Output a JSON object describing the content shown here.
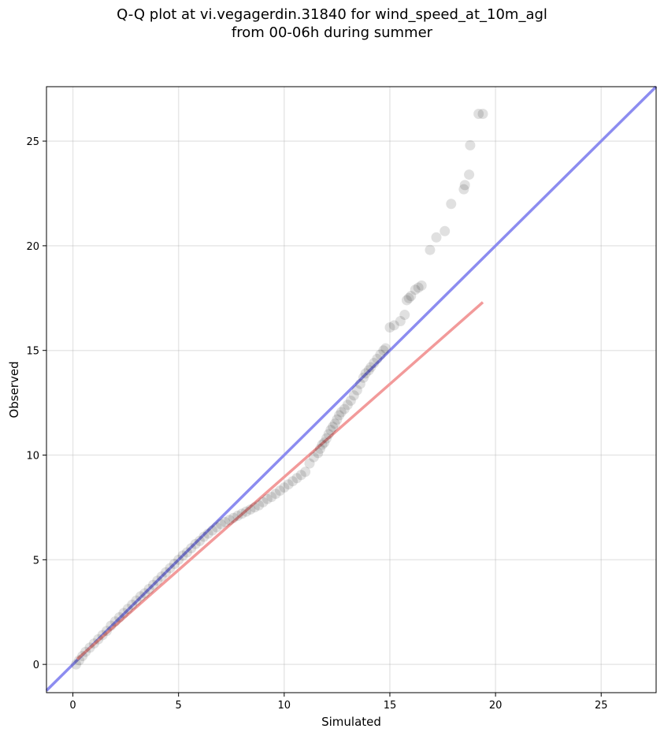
{
  "title_line1": "Q-Q plot at vi.vegagerdin.31840 for wind_speed_at_10m_agl",
  "title_line2": "from 00-06h during summer",
  "chart_data": {
    "type": "scatter",
    "xlabel": "Simulated",
    "ylabel": "Observed",
    "xlim": [
      -1.25,
      27.6
    ],
    "ylim": [
      -1.35,
      27.6
    ],
    "xticks": [
      0,
      5,
      10,
      15,
      20,
      25
    ],
    "yticks": [
      0,
      5,
      10,
      15,
      20,
      25
    ],
    "grid": true,
    "identity_line": {
      "color": "#8c8cf0",
      "from": [
        -1.25,
        -1.25
      ],
      "to": [
        27.6,
        27.6
      ]
    },
    "fit_line": {
      "color": "#f29a9a",
      "from": [
        0.2,
        0.25
      ],
      "to": [
        19.4,
        17.3
      ]
    },
    "points": {
      "color": "#000000",
      "x": [
        0.15,
        0.3,
        0.45,
        0.6,
        0.8,
        1.0,
        1.2,
        1.4,
        1.6,
        1.8,
        2.0,
        2.2,
        2.4,
        2.6,
        2.8,
        3.0,
        3.2,
        3.4,
        3.6,
        3.8,
        4.0,
        4.2,
        4.4,
        4.6,
        4.8,
        5.0,
        5.2,
        5.4,
        5.6,
        5.8,
        6.0,
        6.2,
        6.4,
        6.6,
        6.8,
        7.0,
        7.2,
        7.4,
        7.6,
        7.8,
        8.0,
        8.2,
        8.4,
        8.6,
        8.8,
        9.0,
        9.2,
        9.4,
        9.6,
        9.8,
        10.0,
        10.2,
        10.4,
        10.6,
        10.8,
        11.0,
        11.2,
        11.4,
        11.6,
        11.7,
        11.8,
        11.9,
        12.0,
        12.1,
        12.2,
        12.3,
        12.4,
        12.5,
        12.6,
        12.7,
        12.85,
        13.0,
        13.15,
        13.3,
        13.45,
        13.6,
        13.75,
        13.85,
        14.0,
        14.1,
        14.25,
        14.4,
        14.55,
        14.7,
        14.8,
        15.0,
        15.2,
        15.5,
        15.7,
        15.8,
        15.9,
        16.0,
        16.2,
        16.35,
        16.5,
        16.9,
        17.2,
        17.6,
        17.9,
        18.5,
        18.55,
        18.75,
        18.8,
        19.2,
        19.4
      ],
      "y": [
        0.0,
        0.2,
        0.4,
        0.6,
        0.8,
        1.0,
        1.2,
        1.4,
        1.6,
        1.85,
        2.05,
        2.25,
        2.45,
        2.65,
        2.85,
        3.05,
        3.25,
        3.4,
        3.6,
        3.8,
        4.0,
        4.2,
        4.4,
        4.6,
        4.8,
        5.0,
        5.2,
        5.35,
        5.55,
        5.75,
        5.9,
        6.1,
        6.25,
        6.4,
        6.55,
        6.7,
        6.8,
        6.9,
        7.0,
        7.1,
        7.2,
        7.3,
        7.4,
        7.5,
        7.6,
        7.75,
        7.9,
        8.0,
        8.15,
        8.3,
        8.45,
        8.6,
        8.75,
        8.9,
        9.05,
        9.2,
        9.6,
        9.9,
        10.1,
        10.3,
        10.5,
        10.6,
        10.8,
        11.0,
        11.2,
        11.35,
        11.5,
        11.7,
        11.9,
        12.05,
        12.2,
        12.4,
        12.6,
        12.85,
        13.1,
        13.4,
        13.7,
        13.9,
        14.05,
        14.2,
        14.4,
        14.6,
        14.8,
        15.0,
        15.1,
        16.1,
        16.2,
        16.4,
        16.7,
        17.4,
        17.5,
        17.6,
        17.9,
        18.0,
        18.1,
        19.8,
        20.4,
        20.7,
        22.0,
        22.7,
        22.9,
        23.4,
        24.8,
        26.3,
        26.3
      ]
    }
  }
}
